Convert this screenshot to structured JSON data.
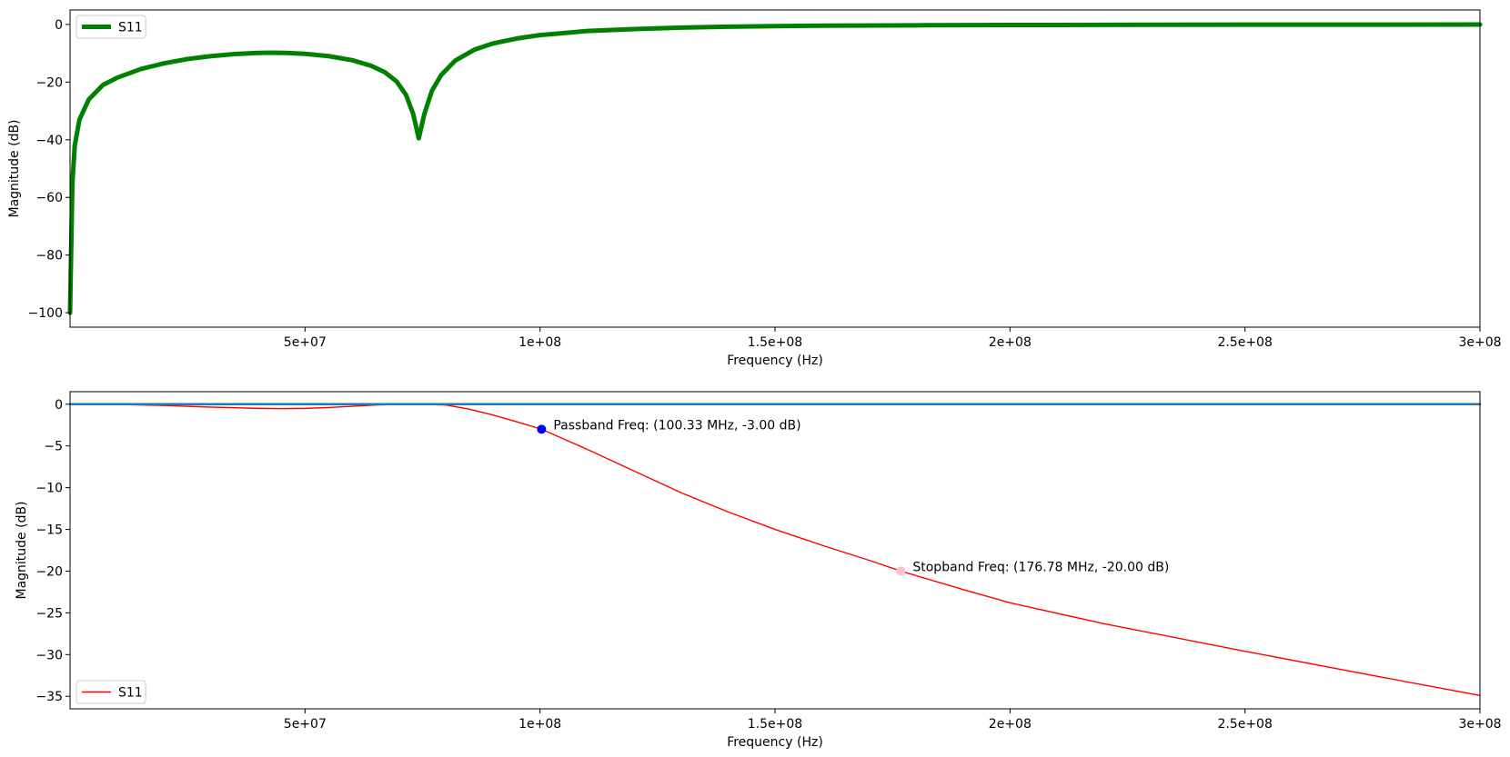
{
  "chart_data": [
    {
      "type": "line",
      "xlabel": "Frequency (Hz)",
      "ylabel": "Magnitude (dB)",
      "xlim": [
        0,
        300000000
      ],
      "ylim": [
        -105,
        5
      ],
      "x_ticks": [
        50000000,
        100000000,
        150000000,
        200000000,
        250000000,
        300000000
      ],
      "x_tick_labels": [
        "5e+07",
        "1e+08",
        "1.5e+08",
        "2e+08",
        "2.5e+08",
        "3e+08"
      ],
      "y_ticks": [
        0,
        -20,
        -40,
        -60,
        -80,
        -100
      ],
      "y_tick_labels": [
        "0",
        "−20",
        "−40",
        "−60",
        "−80",
        "−100"
      ],
      "grid": false,
      "legend": {
        "position": "top-left",
        "entries": [
          "S11"
        ]
      },
      "series": [
        {
          "name": "S11",
          "color": "#008000",
          "x": [
            0,
            500000,
            1000000,
            2000000,
            4000000,
            7000000,
            10000000,
            15000000,
            20000000,
            25000000,
            30000000,
            35000000,
            40000000,
            43000000,
            46000000,
            50000000,
            55000000,
            60000000,
            64000000,
            67000000,
            69500000,
            71500000,
            73000000,
            74200000,
            75400000,
            77000000,
            79000000,
            82000000,
            86000000,
            90000000,
            95000000,
            100000000,
            110000000,
            120000000,
            130000000,
            140000000,
            150000000,
            160000000,
            180000000,
            200000000,
            220000000,
            250000000,
            300000000
          ],
          "values": [
            -100,
            -55,
            -42,
            -33,
            -26,
            -21,
            -18.5,
            -15.5,
            -13.5,
            -12,
            -11,
            -10.3,
            -9.9,
            -9.8,
            -9.9,
            -10.2,
            -11,
            -12.4,
            -14.3,
            -16.6,
            -19.8,
            -24.5,
            -31,
            -39.5,
            -31,
            -23,
            -17.5,
            -12.5,
            -8.8,
            -6.6,
            -4.9,
            -3.7,
            -2.3,
            -1.6,
            -1.1,
            -0.8,
            -0.6,
            -0.45,
            -0.3,
            -0.2,
            -0.15,
            -0.1,
            -0.05
          ]
        }
      ]
    },
    {
      "type": "line",
      "xlabel": "Frequency (Hz)",
      "ylabel": "Magnitude (dB)",
      "xlim": [
        0,
        300000000
      ],
      "ylim": [
        -36.5,
        1.5
      ],
      "x_ticks": [
        50000000,
        100000000,
        150000000,
        200000000,
        250000000,
        300000000
      ],
      "x_tick_labels": [
        "5e+07",
        "1e+08",
        "1.5e+08",
        "2e+08",
        "2.5e+08",
        "3e+08"
      ],
      "y_ticks": [
        0,
        -5,
        -10,
        -15,
        -20,
        -25,
        -30,
        -35
      ],
      "y_tick_labels": [
        "0",
        "−5",
        "−10",
        "−15",
        "−20",
        "−25",
        "−30",
        "−35"
      ],
      "grid": false,
      "legend": {
        "position": "bottom-left",
        "entries": [
          "S11"
        ]
      },
      "series": [
        {
          "name": "S11",
          "color": "#ff0000",
          "x": [
            0,
            10000000,
            20000000,
            30000000,
            40000000,
            45000000,
            50000000,
            55000000,
            60000000,
            65000000,
            70000000,
            75000000,
            80000000,
            85000000,
            90000000,
            95000000,
            100330000,
            110000000,
            120000000,
            130000000,
            140000000,
            150000000,
            160000000,
            170000000,
            176780000,
            190000000,
            200000000,
            220000000,
            250000000,
            280000000,
            300000000
          ],
          "values": [
            0,
            -0.03,
            -0.15,
            -0.35,
            -0.5,
            -0.53,
            -0.5,
            -0.4,
            -0.25,
            -0.1,
            -0.02,
            -0.02,
            -0.1,
            -0.6,
            -1.3,
            -2.1,
            -3.0,
            -5.4,
            -8.0,
            -10.6,
            -12.9,
            -15.0,
            -16.9,
            -18.7,
            -20.0,
            -22.2,
            -23.8,
            -26.3,
            -29.6,
            -32.8,
            -34.9
          ]
        },
        {
          "name": "",
          "color": "#1f77b4",
          "x": [
            0,
            300000000
          ],
          "values": [
            0,
            0
          ]
        }
      ],
      "markers": [
        {
          "x": 100330000,
          "y": -3.0,
          "color": "#0000ff",
          "label": "Passband Freq: (100.33 MHz, -3.00 dB)"
        },
        {
          "x": 176780000,
          "y": -20.0,
          "color": "#ffc0cb",
          "label": "Stopband Freq: (176.78 MHz, -20.00 dB)"
        }
      ]
    }
  ]
}
